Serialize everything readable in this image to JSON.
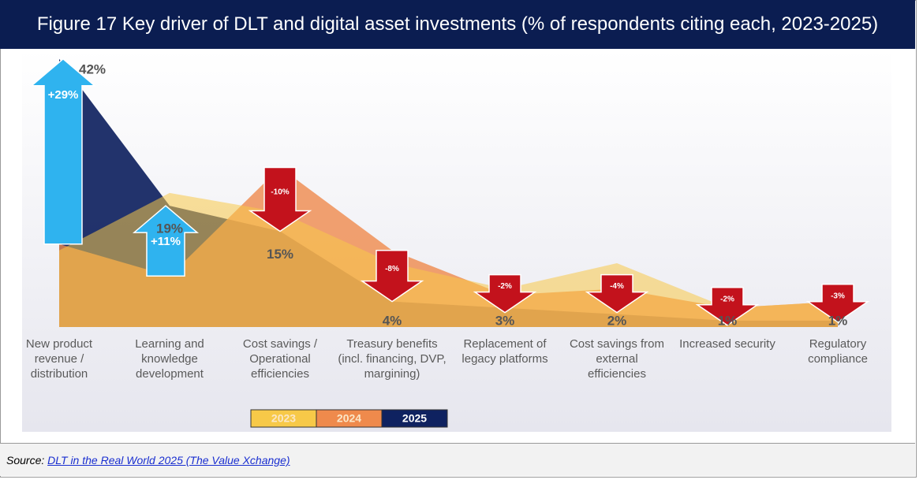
{
  "title": "Figure 17 Key driver of DLT and digital asset investments (% of respondents citing each, 2023-2025)",
  "chart_data": {
    "type": "area",
    "categories": [
      "New product revenue / distribution",
      "Learning and knowledge development",
      "Cost savings / Operational efficiencies",
      "Treasury benefits (incl. financing, DVP, margining)",
      "Replacement of legacy platforms",
      "Cost savings from external efficiencies",
      "Increased security",
      "Regulatory compliance"
    ],
    "series": [
      {
        "name": "2023",
        "color": "#f7c948",
        "values": [
          12,
          21,
          18,
          10,
          6,
          10,
          3,
          4
        ]
      },
      {
        "name": "2024",
        "color": "#ef8a4c",
        "values": [
          13,
          8,
          25,
          12,
          5,
          6,
          3,
          4
        ]
      },
      {
        "name": "2025",
        "color": "#0f2260",
        "values": [
          42,
          19,
          15,
          4,
          3,
          2,
          1,
          1
        ],
        "value_labels": [
          "42%",
          "19%",
          "15%",
          "4%",
          "3%",
          "2%",
          "1%",
          "1%"
        ]
      }
    ],
    "changes": {
      "values": [
        29,
        11,
        -10,
        -8,
        -2,
        -4,
        -2,
        -3
      ],
      "value_labels": [
        "+29%",
        "+11%",
        "-10%",
        "-8%",
        "-2%",
        "-4%",
        "-2%",
        "-3%"
      ],
      "up_color": "#2fb3ef",
      "down_color": "#c3121c"
    }
  },
  "source": {
    "label": "Source:",
    "link": "DLT in the Real World 2025 (The Value Xchange)"
  }
}
